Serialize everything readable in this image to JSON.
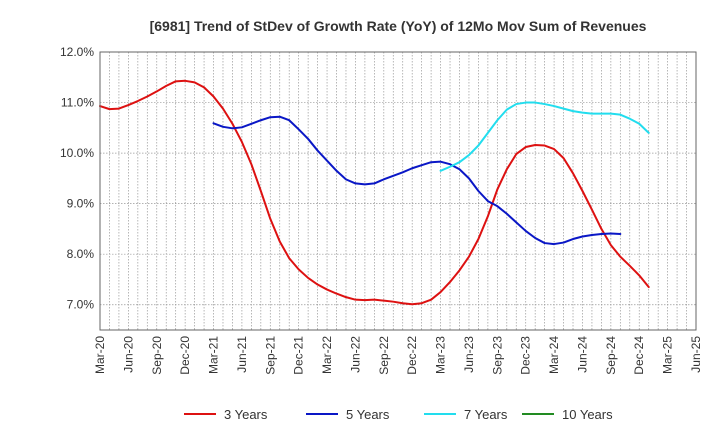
{
  "chart_data": {
    "type": "line",
    "title": "[6981]  Trend of StDev of Growth Rate (YoY) of 12Mo Mov Sum of Revenues",
    "xlabel": "",
    "ylabel": "",
    "ylim": [
      6.5,
      12.0
    ],
    "yticks": [
      7.0,
      8.0,
      9.0,
      10.0,
      11.0,
      12.0
    ],
    "ytick_labels": [
      "7.0%",
      "8.0%",
      "9.0%",
      "10.0%",
      "11.0%",
      "12.0%"
    ],
    "xticks": [
      "Mar-20",
      "Jun-20",
      "Sep-20",
      "Dec-20",
      "Mar-21",
      "Jun-21",
      "Sep-21",
      "Dec-21",
      "Mar-22",
      "Jun-22",
      "Sep-22",
      "Dec-22",
      "Mar-23",
      "Jun-23",
      "Sep-23",
      "Dec-23",
      "Mar-24",
      "Jun-24",
      "Sep-24",
      "Dec-24",
      "Mar-25",
      "Jun-25"
    ],
    "grid": true,
    "legend_position": "bottom",
    "series": [
      {
        "name": "3 Years",
        "color": "#dd1111",
        "start_index": 0,
        "values": [
          10.93,
          10.87,
          10.88,
          10.95,
          11.03,
          11.12,
          11.22,
          11.33,
          11.42,
          11.43,
          11.4,
          11.3,
          11.12,
          10.88,
          10.58,
          10.22,
          9.78,
          9.25,
          8.7,
          8.25,
          7.92,
          7.7,
          7.53,
          7.4,
          7.3,
          7.22,
          7.15,
          7.1,
          7.09,
          7.1,
          7.08,
          7.06,
          7.03,
          7.01,
          7.03,
          7.1,
          7.25,
          7.45,
          7.68,
          7.95,
          8.3,
          8.75,
          9.28,
          9.68,
          9.98,
          10.12,
          10.16,
          10.15,
          10.08,
          9.9,
          9.6,
          9.25,
          8.88,
          8.5,
          8.18,
          7.95,
          7.77,
          7.58,
          7.35
        ]
      },
      {
        "name": "5 Years",
        "color": "#0a17c6",
        "start_index": 12,
        "values": [
          10.59,
          10.52,
          10.49,
          10.51,
          10.58,
          10.65,
          10.71,
          10.72,
          10.65,
          10.47,
          10.28,
          10.05,
          9.85,
          9.65,
          9.48,
          9.4,
          9.38,
          9.4,
          9.48,
          9.55,
          9.62,
          9.7,
          9.76,
          9.82,
          9.83,
          9.78,
          9.68,
          9.5,
          9.25,
          9.05,
          8.95,
          8.8,
          8.63,
          8.46,
          8.32,
          8.22,
          8.2,
          8.23,
          8.3,
          8.35,
          8.38,
          8.4,
          8.41,
          8.4
        ]
      },
      {
        "name": "7 Years",
        "color": "#22ddee",
        "start_index": 36,
        "values": [
          9.65,
          9.73,
          9.82,
          9.96,
          10.15,
          10.4,
          10.65,
          10.86,
          10.97,
          11.0,
          11.0,
          10.97,
          10.93,
          10.88,
          10.83,
          10.8,
          10.78,
          10.78,
          10.78,
          10.76,
          10.68,
          10.58,
          10.4
        ]
      },
      {
        "name": "10 Years",
        "color": "#228b22",
        "start_index": 0,
        "values": []
      }
    ]
  }
}
